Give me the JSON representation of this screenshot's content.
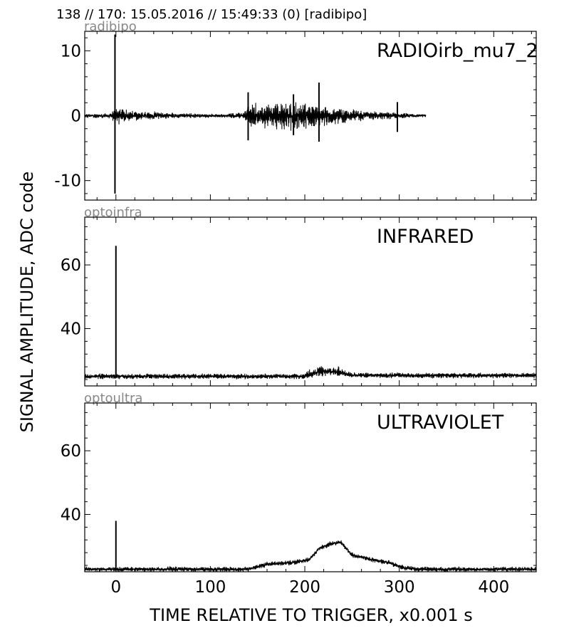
{
  "header": {
    "title": "138 // 170:   15.05.2016 // 15:49:33 (0)  [radibipo]"
  },
  "axes": {
    "ylabel": "SIGNAL AMPLITUDE,  ADC code",
    "xlabel": "TIME RELATIVE TO TRIGGER,   x0.001 s"
  },
  "chart_data": [
    {
      "type": "line",
      "source_label": "radibipo",
      "panel_label": "RADIOirb_mu7_2",
      "xlim": [
        -33,
        445
      ],
      "ylim": [
        -13,
        13
      ],
      "xticks": [
        0,
        100,
        200,
        300,
        400
      ],
      "yticks": [
        -10,
        0,
        10
      ],
      "ytick_labels": [
        "-10",
        "0",
        "10"
      ],
      "x_end": 328,
      "baseline": 0,
      "spikes": [
        {
          "x": -1,
          "min": -12,
          "max": 12.5
        },
        {
          "x": 140,
          "min": -3.8,
          "max": 3.6
        },
        {
          "x": 188,
          "min": -3,
          "max": 3.3
        },
        {
          "x": 215,
          "min": -4,
          "max": 5.1
        },
        {
          "x": 298,
          "min": -2.5,
          "max": 2.1
        }
      ],
      "envelope": [
        {
          "x": -33,
          "amp": 0.4
        },
        {
          "x": -5,
          "amp": 0.5
        },
        {
          "x": 0,
          "amp": 2.0
        },
        {
          "x": 5,
          "amp": 1.2
        },
        {
          "x": 30,
          "amp": 0.8
        },
        {
          "x": 60,
          "amp": 0.5
        },
        {
          "x": 110,
          "amp": 0.3
        },
        {
          "x": 135,
          "amp": 0.6
        },
        {
          "x": 140,
          "amp": 2.3
        },
        {
          "x": 160,
          "amp": 2.2
        },
        {
          "x": 185,
          "amp": 2.6
        },
        {
          "x": 205,
          "amp": 2.2
        },
        {
          "x": 230,
          "amp": 1.6
        },
        {
          "x": 260,
          "amp": 0.9
        },
        {
          "x": 300,
          "amp": 0.5
        },
        {
          "x": 328,
          "amp": 0.3
        }
      ]
    },
    {
      "type": "line",
      "source_label": "optoinfra",
      "panel_label": "INFRARED",
      "xlim": [
        -33,
        445
      ],
      "ylim": [
        22,
        75
      ],
      "xticks": [
        0,
        100,
        200,
        300,
        400
      ],
      "yticks": [
        40,
        60
      ],
      "ytick_labels": [
        "40",
        "60"
      ],
      "x_end": 445,
      "baseline": 25,
      "spikes": [
        {
          "x": 0,
          "min": 25,
          "max": 66
        }
      ],
      "envelope": [
        {
          "x": -33,
          "amp": 1.0
        },
        {
          "x": 200,
          "amp": 1.0
        },
        {
          "x": 205,
          "amp": 1.8
        },
        {
          "x": 235,
          "amp": 1.8
        },
        {
          "x": 245,
          "amp": 1.0
        },
        {
          "x": 445,
          "amp": 1.0
        }
      ],
      "offsets": [
        {
          "x": 200,
          "dy": 0
        },
        {
          "x": 215,
          "dy": 1.5
        },
        {
          "x": 235,
          "dy": 1.5
        },
        {
          "x": 250,
          "dy": 0.3
        }
      ]
    },
    {
      "type": "line",
      "source_label": "optoultra",
      "panel_label": "ULTRAVIOLET",
      "xlim": [
        -33,
        445
      ],
      "ylim": [
        22,
        75
      ],
      "xticks": [
        0,
        100,
        200,
        300,
        400
      ],
      "yticks": [
        40,
        60
      ],
      "ytick_labels": [
        "40",
        "60"
      ],
      "xtick_labels": [
        "0",
        "100",
        "200",
        "300",
        "400"
      ],
      "x_end": 445,
      "baseline": 22.8,
      "spikes": [
        {
          "x": 0,
          "min": 23,
          "max": 38
        }
      ],
      "envelope": [
        {
          "x": -33,
          "amp": 0.9
        },
        {
          "x": 445,
          "amp": 0.9
        }
      ],
      "offsets": [
        {
          "x": 140,
          "dy": 0
        },
        {
          "x": 160,
          "dy": 1.5
        },
        {
          "x": 190,
          "dy": 2.2
        },
        {
          "x": 205,
          "dy": 3
        },
        {
          "x": 215,
          "dy": 6.5
        },
        {
          "x": 228,
          "dy": 8
        },
        {
          "x": 238,
          "dy": 8.5
        },
        {
          "x": 250,
          "dy": 4.5
        },
        {
          "x": 270,
          "dy": 3
        },
        {
          "x": 290,
          "dy": 2
        },
        {
          "x": 305,
          "dy": 0.3
        },
        {
          "x": 320,
          "dy": 0
        }
      ]
    }
  ]
}
